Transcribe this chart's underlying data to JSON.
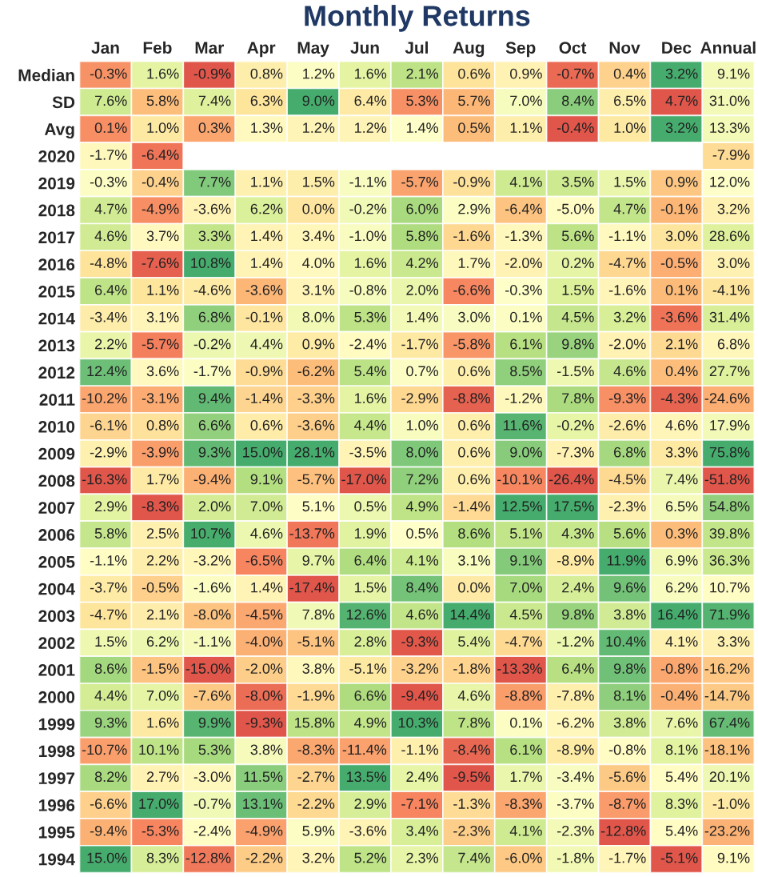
{
  "chart_data": {
    "type": "heatmap",
    "title": "Monthly Returns",
    "categories": [
      "Jan",
      "Feb",
      "Mar",
      "Apr",
      "May",
      "Jun",
      "Jul",
      "Aug",
      "Sep",
      "Oct",
      "Nov",
      "Dec",
      "Annual"
    ],
    "y_categories": [
      "Median",
      "SD",
      "Avg",
      "2020",
      "2019",
      "2018",
      "2017",
      "2016",
      "2015",
      "2014",
      "2013",
      "2012",
      "2011",
      "2010",
      "2009",
      "2008",
      "2007",
      "2006",
      "2005",
      "2004",
      "2003",
      "2002",
      "2001",
      "2000",
      "1999",
      "1998",
      "1997",
      "1996",
      "1995",
      "1994"
    ],
    "cells": [
      [
        -0.3,
        1.6,
        -0.9,
        0.8,
        1.2,
        1.6,
        2.1,
        0.6,
        0.9,
        -0.7,
        0.4,
        3.2,
        9.1
      ],
      [
        7.6,
        5.8,
        7.4,
        6.3,
        9.0,
        6.4,
        5.3,
        5.7,
        7.0,
        8.4,
        6.5,
        4.7,
        31.0
      ],
      [
        0.1,
        1.0,
        0.3,
        1.3,
        1.2,
        1.2,
        1.4,
        0.5,
        1.1,
        -0.4,
        1.0,
        3.2,
        13.3
      ],
      [
        -1.7,
        -6.4,
        null,
        null,
        null,
        null,
        null,
        null,
        null,
        null,
        null,
        null,
        -7.9
      ],
      [
        -0.3,
        -0.4,
        7.7,
        1.1,
        1.5,
        -1.1,
        -5.7,
        -0.9,
        4.1,
        3.5,
        1.5,
        0.9,
        12.0
      ],
      [
        4.7,
        -4.9,
        -3.6,
        6.2,
        0.0,
        -0.2,
        6.0,
        2.9,
        -6.4,
        -5.0,
        4.7,
        -0.1,
        3.2
      ],
      [
        4.6,
        3.7,
        3.3,
        1.4,
        3.4,
        -1.0,
        5.8,
        -1.6,
        -1.3,
        5.6,
        -1.1,
        3.0,
        28.6
      ],
      [
        -4.8,
        -7.6,
        10.8,
        1.4,
        4.0,
        1.6,
        4.2,
        1.7,
        -2.0,
        0.2,
        -4.7,
        -0.5,
        3.0
      ],
      [
        6.4,
        1.1,
        -4.6,
        -3.6,
        3.1,
        -0.8,
        2.0,
        -6.6,
        -0.3,
        1.5,
        -1.6,
        0.1,
        -4.1
      ],
      [
        -3.4,
        3.1,
        6.8,
        -0.1,
        8.0,
        5.3,
        1.4,
        3.0,
        0.1,
        4.5,
        3.2,
        -3.6,
        31.4
      ],
      [
        2.2,
        -5.7,
        -0.2,
        4.4,
        0.9,
        -2.4,
        -1.7,
        -5.8,
        6.1,
        9.8,
        -2.0,
        2.1,
        6.8
      ],
      [
        12.4,
        3.6,
        -1.7,
        -0.9,
        -6.2,
        5.4,
        0.7,
        0.6,
        8.5,
        -1.5,
        4.6,
        0.4,
        27.7
      ],
      [
        -10.2,
        -3.1,
        9.4,
        -1.4,
        -3.3,
        1.6,
        -2.9,
        -8.8,
        -1.2,
        7.8,
        -9.3,
        -4.3,
        -24.6
      ],
      [
        -6.1,
        0.8,
        6.6,
        0.6,
        -3.6,
        4.4,
        1.0,
        0.6,
        11.6,
        -0.2,
        -2.6,
        4.6,
        17.9
      ],
      [
        -2.9,
        -3.9,
        9.3,
        15.0,
        28.1,
        -3.5,
        8.0,
        0.6,
        9.0,
        -7.3,
        6.8,
        3.3,
        75.8
      ],
      [
        -16.3,
        1.7,
        -9.4,
        9.1,
        -5.7,
        -17.0,
        7.2,
        0.6,
        -10.1,
        -26.4,
        -4.5,
        7.4,
        -51.8
      ],
      [
        2.9,
        -8.3,
        2.0,
        7.0,
        5.1,
        0.5,
        4.9,
        -1.4,
        12.5,
        17.5,
        -2.3,
        6.5,
        54.8
      ],
      [
        5.8,
        2.5,
        10.7,
        4.6,
        -13.7,
        1.9,
        0.5,
        8.6,
        5.1,
        4.3,
        5.6,
        0.3,
        39.8
      ],
      [
        -1.1,
        2.2,
        -3.2,
        -6.5,
        9.7,
        6.4,
        4.1,
        3.1,
        9.1,
        -8.9,
        11.9,
        6.9,
        36.3
      ],
      [
        -3.7,
        -0.5,
        -1.6,
        1.4,
        -17.4,
        1.5,
        8.4,
        0.0,
        7.0,
        2.4,
        9.6,
        6.2,
        10.7
      ],
      [
        -4.7,
        2.1,
        -8.0,
        -4.5,
        7.8,
        12.6,
        4.6,
        14.4,
        4.5,
        9.8,
        3.8,
        16.4,
        71.9
      ],
      [
        1.5,
        6.2,
        -1.1,
        -4.0,
        -5.1,
        2.8,
        -9.3,
        5.4,
        -4.7,
        -1.2,
        10.4,
        4.1,
        3.3
      ],
      [
        8.6,
        -1.5,
        -15.0,
        -2.0,
        3.8,
        -5.1,
        -3.2,
        -1.8,
        -13.3,
        6.4,
        9.8,
        -0.8,
        -16.2
      ],
      [
        4.4,
        7.0,
        -7.6,
        -8.0,
        -1.9,
        6.6,
        -9.4,
        4.6,
        -8.8,
        -7.8,
        8.1,
        -0.4,
        -14.7
      ],
      [
        9.3,
        1.6,
        9.9,
        -9.3,
        15.8,
        4.9,
        10.3,
        7.8,
        0.1,
        -6.2,
        3.8,
        7.6,
        67.4
      ],
      [
        -10.7,
        10.1,
        5.3,
        3.8,
        -8.3,
        -11.4,
        -1.1,
        -8.4,
        6.1,
        -8.9,
        -0.8,
        8.1,
        -18.1
      ],
      [
        8.2,
        2.7,
        -3.0,
        11.5,
        -2.7,
        13.5,
        2.4,
        -9.5,
        1.7,
        -3.4,
        -5.6,
        5.4,
        20.1
      ],
      [
        -6.6,
        17.0,
        -0.7,
        13.1,
        -2.2,
        2.9,
        -7.1,
        -1.3,
        -8.3,
        -3.7,
        -8.7,
        8.3,
        -1.0
      ],
      [
        -9.4,
        -5.3,
        -2.4,
        -4.9,
        5.9,
        -3.6,
        3.4,
        -2.3,
        4.1,
        -2.3,
        -12.8,
        5.4,
        -23.2
      ],
      [
        15.0,
        8.3,
        -12.8,
        -2.2,
        3.2,
        5.2,
        2.3,
        7.4,
        -6.0,
        -1.8,
        -1.7,
        -5.1,
        9.1
      ]
    ],
    "cell_labels": [
      [
        "-0.3%",
        "1.6%",
        "-0.9%",
        "0.8%",
        "1.2%",
        "1.6%",
        "2.1%",
        "0.6%",
        "0.9%",
        "-0.7%",
        "0.4%",
        "3.2%",
        "9.1%"
      ],
      [
        "7.6%",
        "5.8%",
        "7.4%",
        "6.3%",
        "9.0%",
        "6.4%",
        "5.3%",
        "5.7%",
        "7.0%",
        "8.4%",
        "6.5%",
        "4.7%",
        "31.0%"
      ],
      [
        "0.1%",
        "1.0%",
        "0.3%",
        "1.3%",
        "1.2%",
        "1.2%",
        "1.4%",
        "0.5%",
        "1.1%",
        "-0.4%",
        "1.0%",
        "3.2%",
        "13.3%"
      ],
      [
        "-1.7%",
        "-6.4%",
        null,
        null,
        null,
        null,
        null,
        null,
        null,
        null,
        null,
        null,
        "-7.9%"
      ],
      [
        "-0.3%",
        "-0.4%",
        "7.7%",
        "1.1%",
        "1.5%",
        "-1.1%",
        "-5.7%",
        "-0.9%",
        "4.1%",
        "3.5%",
        "1.5%",
        "0.9%",
        "12.0%"
      ],
      [
        "4.7%",
        "-4.9%",
        "-3.6%",
        "6.2%",
        "0.0%",
        "-0.2%",
        "6.0%",
        "2.9%",
        "-6.4%",
        "-5.0%",
        "4.7%",
        "-0.1%",
        "3.2%"
      ],
      [
        "4.6%",
        "3.7%",
        "3.3%",
        "1.4%",
        "3.4%",
        "-1.0%",
        "5.8%",
        "-1.6%",
        "-1.3%",
        "5.6%",
        "-1.1%",
        "3.0%",
        "28.6%"
      ],
      [
        "-4.8%",
        "-7.6%",
        "10.8%",
        "1.4%",
        "4.0%",
        "1.6%",
        "4.2%",
        "1.7%",
        "-2.0%",
        "0.2%",
        "-4.7%",
        "-0.5%",
        "3.0%"
      ],
      [
        "6.4%",
        "1.1%",
        "-4.6%",
        "-3.6%",
        "3.1%",
        "-0.8%",
        "2.0%",
        "-6.6%",
        "-0.3%",
        "1.5%",
        "-1.6%",
        "0.1%",
        "-4.1%"
      ],
      [
        "-3.4%",
        "3.1%",
        "6.8%",
        "-0.1%",
        "8.0%",
        "5.3%",
        "1.4%",
        "3.0%",
        "0.1%",
        "4.5%",
        "3.2%",
        "-3.6%",
        "31.4%"
      ],
      [
        "2.2%",
        "-5.7%",
        "-0.2%",
        "4.4%",
        "0.9%",
        "-2.4%",
        "-1.7%",
        "-5.8%",
        "6.1%",
        "9.8%",
        "-2.0%",
        "2.1%",
        "6.8%"
      ],
      [
        "12.4%",
        "3.6%",
        "-1.7%",
        "-0.9%",
        "-6.2%",
        "5.4%",
        "0.7%",
        "0.6%",
        "8.5%",
        "-1.5%",
        "4.6%",
        "0.4%",
        "27.7%"
      ],
      [
        "-10.2%",
        "-3.1%",
        "9.4%",
        "-1.4%",
        "-3.3%",
        "1.6%",
        "-2.9%",
        "-8.8%",
        "-1.2%",
        "7.8%",
        "-9.3%",
        "-4.3%",
        "-24.6%"
      ],
      [
        "-6.1%",
        "0.8%",
        "6.6%",
        "0.6%",
        "-3.6%",
        "4.4%",
        "1.0%",
        "0.6%",
        "11.6%",
        "-0.2%",
        "-2.6%",
        "4.6%",
        "17.9%"
      ],
      [
        "-2.9%",
        "-3.9%",
        "9.3%",
        "15.0%",
        "28.1%",
        "-3.5%",
        "8.0%",
        "0.6%",
        "9.0%",
        "-7.3%",
        "6.8%",
        "3.3%",
        "75.8%"
      ],
      [
        "-16.3%",
        "1.7%",
        "-9.4%",
        "9.1%",
        "-5.7%",
        "-17.0%",
        "7.2%",
        "0.6%",
        "-10.1%",
        "-26.4%",
        "-4.5%",
        "7.4%",
        "-51.8%"
      ],
      [
        "2.9%",
        "-8.3%",
        "2.0%",
        "7.0%",
        "5.1%",
        "0.5%",
        "4.9%",
        "-1.4%",
        "12.5%",
        "17.5%",
        "-2.3%",
        "6.5%",
        "54.8%"
      ],
      [
        "5.8%",
        "2.5%",
        "10.7%",
        "4.6%",
        "-13.7%",
        "1.9%",
        "0.5%",
        "8.6%",
        "5.1%",
        "4.3%",
        "5.6%",
        "0.3%",
        "39.8%"
      ],
      [
        "-1.1%",
        "2.2%",
        "-3.2%",
        "-6.5%",
        "9.7%",
        "6.4%",
        "4.1%",
        "3.1%",
        "9.1%",
        "-8.9%",
        "11.9%",
        "6.9%",
        "36.3%"
      ],
      [
        "-3.7%",
        "-0.5%",
        "-1.6%",
        "1.4%",
        "-17.4%",
        "1.5%",
        "8.4%",
        "0.0%",
        "7.0%",
        "2.4%",
        "9.6%",
        "6.2%",
        "10.7%"
      ],
      [
        "-4.7%",
        "2.1%",
        "-8.0%",
        "-4.5%",
        "7.8%",
        "12.6%",
        "4.6%",
        "14.4%",
        "4.5%",
        "9.8%",
        "3.8%",
        "16.4%",
        "71.9%"
      ],
      [
        "1.5%",
        "6.2%",
        "-1.1%",
        "-4.0%",
        "-5.1%",
        "2.8%",
        "-9.3%",
        "5.4%",
        "-4.7%",
        "-1.2%",
        "10.4%",
        "4.1%",
        "3.3%"
      ],
      [
        "8.6%",
        "-1.5%",
        "-15.0%",
        "-2.0%",
        "3.8%",
        "-5.1%",
        "-3.2%",
        "-1.8%",
        "-13.3%",
        "6.4%",
        "9.8%",
        "-0.8%",
        "-16.2%"
      ],
      [
        "4.4%",
        "7.0%",
        "-7.6%",
        "-8.0%",
        "-1.9%",
        "6.6%",
        "-9.4%",
        "4.6%",
        "-8.8%",
        "-7.8%",
        "8.1%",
        "-0.4%",
        "-14.7%"
      ],
      [
        "9.3%",
        "1.6%",
        "9.9%",
        "-9.3%",
        "15.8%",
        "4.9%",
        "10.3%",
        "7.8%",
        "0.1%",
        "-6.2%",
        "3.8%",
        "7.6%",
        "67.4%"
      ],
      [
        "-10.7%",
        "10.1%",
        "5.3%",
        "3.8%",
        "-8.3%",
        "-11.4%",
        "-1.1%",
        "-8.4%",
        "6.1%",
        "-8.9%",
        "-0.8%",
        "8.1%",
        "-18.1%"
      ],
      [
        "8.2%",
        "2.7%",
        "-3.0%",
        "11.5%",
        "-2.7%",
        "13.5%",
        "2.4%",
        "-9.5%",
        "1.7%",
        "-3.4%",
        "-5.6%",
        "5.4%",
        "20.1%"
      ],
      [
        "-6.6%",
        "17.0%",
        "-0.7%",
        "13.1%",
        "-2.2%",
        "2.9%",
        "-7.1%",
        "-1.3%",
        "-8.3%",
        "-3.7%",
        "-8.7%",
        "8.3%",
        "-1.0%"
      ],
      [
        "-9.4%",
        "-5.3%",
        "-2.4%",
        "-4.9%",
        "5.9%",
        "-3.6%",
        "3.4%",
        "-2.3%",
        "4.1%",
        "-2.3%",
        "-12.8%",
        "5.4%",
        "-23.2%"
      ],
      [
        "15.0%",
        "8.3%",
        "-12.8%",
        "-2.2%",
        "3.2%",
        "5.2%",
        "2.3%",
        "7.4%",
        "-6.0%",
        "-1.8%",
        "-1.7%",
        "-5.1%",
        "9.1%"
      ]
    ]
  }
}
